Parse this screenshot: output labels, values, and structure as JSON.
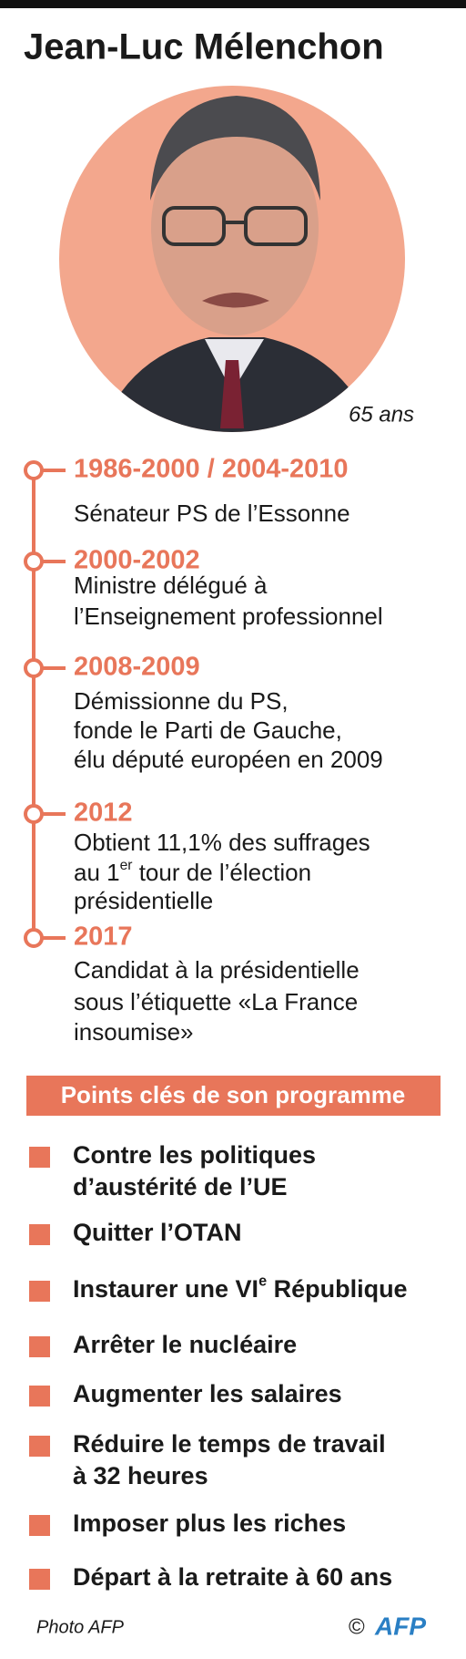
{
  "title": "Jean-Luc Mélenchon",
  "age": "65 ans",
  "timeline": [
    {
      "years": "1986-2000 / 2004-2010",
      "lines": [
        [
          "Sénateur PS de l’Essonne"
        ]
      ]
    },
    {
      "years": "2000-2002",
      "lines": [
        [
          "Ministre délégué à"
        ],
        [
          "l’Enseignement professionnel"
        ]
      ]
    },
    {
      "years": "2008-2009",
      "lines": [
        [
          "Démissionne du PS,"
        ],
        [
          "fonde le Parti de Gauche,"
        ],
        [
          "élu député européen en 2009"
        ]
      ]
    },
    {
      "years": "2012",
      "lines": [
        [
          "Obtient 11,1% des suffrages"
        ],
        [
          "au 1",
          {
            "sup": "er"
          },
          " tour de l’élection"
        ],
        [
          "présidentielle"
        ]
      ]
    },
    {
      "years": "2017",
      "lines": [
        [
          "Candidat à la présidentielle"
        ],
        [
          "sous l’étiquette «La France"
        ],
        [
          "insoumise»"
        ]
      ]
    }
  ],
  "program": {
    "heading": "Points clés de son programme",
    "items": [
      [
        [
          "Contre les politiques"
        ],
        [
          "d’austérité de l’UE"
        ]
      ],
      [
        [
          "Quitter l’OTAN"
        ]
      ],
      [
        [
          "Instaurer une VI",
          {
            "sup": "e"
          },
          " République"
        ]
      ],
      [
        [
          "Arrêter le nucléaire"
        ]
      ],
      [
        [
          "Augmenter les salaires"
        ]
      ],
      [
        [
          "Réduire le temps de travail"
        ],
        [
          "à 32 heures"
        ]
      ],
      [
        [
          "Imposer plus les riches"
        ]
      ],
      [
        [
          "Départ à la retraite à 60 ans"
        ]
      ]
    ]
  },
  "footer": {
    "credit": "Photo AFP",
    "copyright": "©",
    "logo": "AFP"
  }
}
